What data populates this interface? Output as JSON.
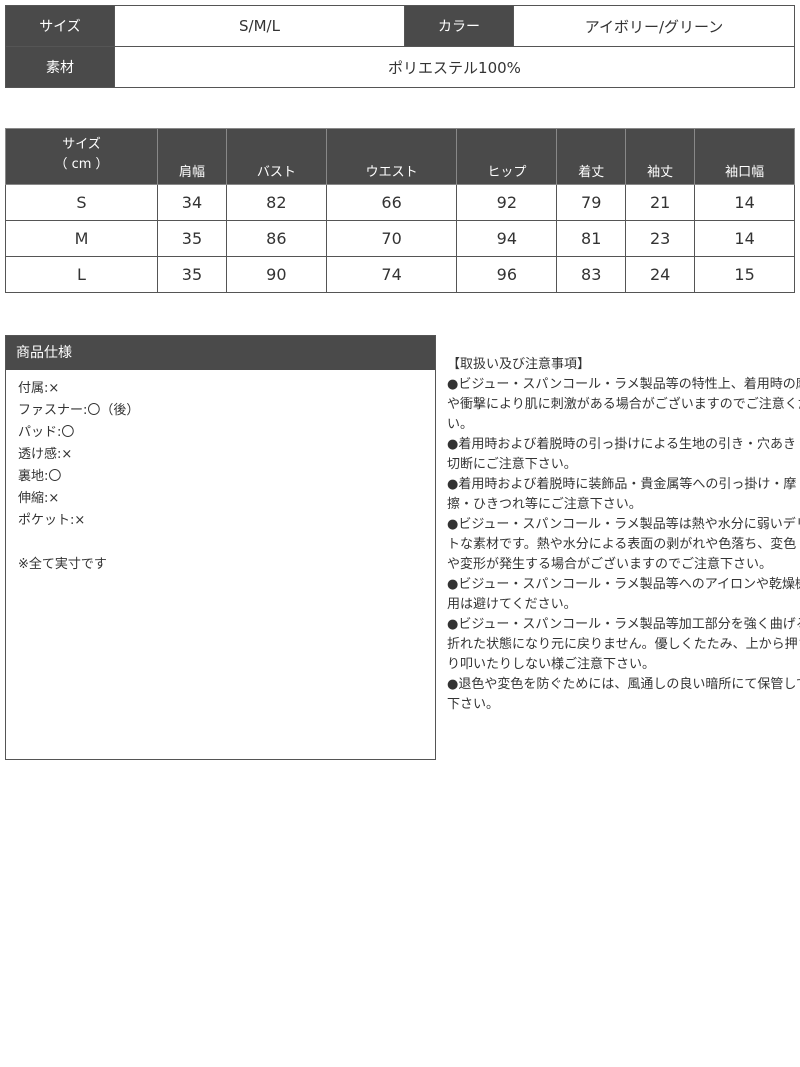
{
  "summary": {
    "size_label": "サイズ",
    "size_value": "S/M/L",
    "color_label": "カラー",
    "color_value": "アイボリー/グリーン",
    "material_label": "素材",
    "material_value": "ポリエステル100%"
  },
  "size_table": {
    "header_lines": [
      "サイズ",
      "（ cm ）"
    ],
    "columns": [
      "肩幅",
      "バスト",
      "ウエスト",
      "ヒップ",
      "着丈",
      "袖丈",
      "袖口幅"
    ],
    "rows": [
      {
        "size": "S",
        "values": [
          "34",
          "82",
          "66",
          "92",
          "79",
          "21",
          "14"
        ]
      },
      {
        "size": "M",
        "values": [
          "35",
          "86",
          "70",
          "94",
          "81",
          "23",
          "14"
        ]
      },
      {
        "size": "L",
        "values": [
          "35",
          "90",
          "74",
          "96",
          "83",
          "24",
          "15"
        ]
      }
    ]
  },
  "spec": {
    "title": "商品仕様",
    "items": [
      "付属:×",
      "ファスナー:〇（後）",
      "パッド:〇",
      "透け感:×",
      "裏地:〇",
      "伸縮:×",
      "ポケット:×"
    ],
    "note": "※全て実寸です"
  },
  "care": {
    "lines": [
      "【取扱い及び注意事項】",
      "●ビジュー・スパンコール・ラメ製品等の特性上、着用時の摩擦",
      "や衝撃により肌に刺激がある場合がございますのでご注意くださ",
      "い。",
      "●着用時および着脱時の引っ掛けによる生地の引き・穴あき・",
      "切断にご注意下さい。",
      "●着用時および着脱時に装飾品・貴金属等への引っ掛け・摩",
      "擦・ひきつれ等にご注意下さい。",
      "●ビジュー・スパンコール・ラメ製品等は熱や水分に弱いデリケー",
      "トな素材です。熱や水分による表面の剥がれや色落ち、変色",
      "や変形が発生する場合がございますのでご注意下さい。",
      "●ビジュー・スパンコール・ラメ製品等へのアイロンや乾燥機の使",
      "用は避けてください。",
      "●ビジュー・スパンコール・ラメ製品等加工部分を強く曲げると",
      "折れた状態になり元に戻りません。優しくたたみ、上から押さえた",
      "り叩いたりしない様ご注意下さい。",
      "●退色や変色を防ぐためには、風通しの良い暗所にて保管して",
      "下さい。"
    ]
  }
}
